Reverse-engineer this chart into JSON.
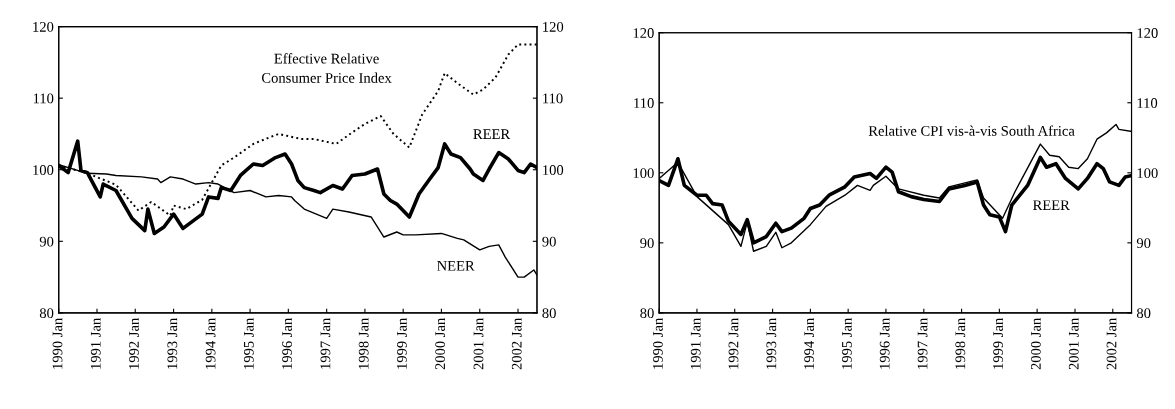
{
  "chart_data": [
    {
      "type": "line",
      "xlim": [
        "1990-01",
        "2002-07"
      ],
      "ylim": [
        80,
        120
      ],
      "yticks": [
        80,
        90,
        100,
        110,
        120
      ],
      "y2lim": [
        80,
        120
      ],
      "y2ticks": [
        80,
        90,
        100,
        110,
        120
      ],
      "grid": false,
      "legend": false,
      "xticks": [
        {
          "value": "1990-01",
          "label": "1990 Jan"
        },
        {
          "value": "1991-01",
          "label": "1991 Jan"
        },
        {
          "value": "1992-01",
          "label": "1992 Jan"
        },
        {
          "value": "1993-01",
          "label": "1993 Jan"
        },
        {
          "value": "1994-01",
          "label": "1994 Jan"
        },
        {
          "value": "1995-01",
          "label": "1995 Jan"
        },
        {
          "value": "1996-01",
          "label": "1996 Jan"
        },
        {
          "value": "1997-01",
          "label": "1997 Jan"
        },
        {
          "value": "1998-01",
          "label": "1998 Jan"
        },
        {
          "value": "1999-01",
          "label": "1999 Jan"
        },
        {
          "value": "2000-01",
          "label": "2000 Jan"
        },
        {
          "value": "2001-01",
          "label": "2001 Jan"
        },
        {
          "value": "2002-01",
          "label": "2002 Jan"
        }
      ],
      "series": [
        {
          "name": "REER",
          "color": "#000000",
          "line_style": "solid",
          "x": [
            "1990-01",
            "1990-04",
            "1990-07",
            "1990-08",
            "1990-10",
            "1991-02",
            "1991-03",
            "1991-07",
            "1991-12",
            "1992-04",
            "1992-05",
            "1992-07",
            "1992-10",
            "1993-01",
            "1993-04",
            "1993-10",
            "1993-12",
            "1994-03",
            "1994-04",
            "1994-07",
            "1994-10",
            "1995-02",
            "1995-05",
            "1995-09",
            "1995-12",
            "1996-02",
            "1996-04",
            "1996-06",
            "1996-09",
            "1996-11",
            "1997-03",
            "1997-06",
            "1997-09",
            "1998-01",
            "1998-05",
            "1998-07",
            "1998-09",
            "1998-11",
            "1999-03",
            "1999-06",
            "1999-09",
            "1999-12",
            "2000-02",
            "2000-04",
            "2000-07",
            "2000-10",
            "2000-11",
            "2001-02",
            "2001-04",
            "2001-07",
            "2001-10",
            "2002-01",
            "2002-03",
            "2002-05",
            "2002-07"
          ],
          "values": [
            100.6,
            99.6,
            104.0,
            99.9,
            99.6,
            96.2,
            98.0,
            97.1,
            93.2,
            91.5,
            94.5,
            91.1,
            92.0,
            93.8,
            91.8,
            93.8,
            96.2,
            96.0,
            97.5,
            97.1,
            99.2,
            100.8,
            100.6,
            101.7,
            102.2,
            100.8,
            98.5,
            97.5,
            97.1,
            96.8,
            97.8,
            97.3,
            99.2,
            99.4,
            100.1,
            96.6,
            95.7,
            95.2,
            93.4,
            96.6,
            98.5,
            100.3,
            103.6,
            102.2,
            101.7,
            100.1,
            99.4,
            98.5,
            100.1,
            102.4,
            101.5,
            99.9,
            99.6,
            100.8,
            100.3
          ]
        },
        {
          "name": "NEER",
          "color": "#000000",
          "line_style": "solid",
          "x": [
            "1990-01",
            "1990-10",
            "1991-04",
            "1991-07",
            "1992-03",
            "1992-08",
            "1992-09",
            "1992-12",
            "1993-04",
            "1993-08",
            "1993-12",
            "1994-03",
            "1994-08",
            "1995-01",
            "1995-06",
            "1995-10",
            "1996-02",
            "1996-03",
            "1996-06",
            "1997-01",
            "1997-03",
            "1997-08",
            "1998-03",
            "1998-07",
            "1998-11",
            "1999-01",
            "1999-05",
            "2000-01",
            "2000-06",
            "2000-08",
            "2001-01",
            "2001-04",
            "2001-07",
            "2001-09",
            "2002-01",
            "2002-03",
            "2002-06",
            "2002-07"
          ],
          "values": [
            100.7,
            99.5,
            99.4,
            99.2,
            99.0,
            98.7,
            98.2,
            99.0,
            98.7,
            98.0,
            98.2,
            98.0,
            96.8,
            97.1,
            96.2,
            96.4,
            96.2,
            95.7,
            94.5,
            93.2,
            94.5,
            94.1,
            93.4,
            90.6,
            91.3,
            90.9,
            90.9,
            91.1,
            90.4,
            90.2,
            88.8,
            89.3,
            89.5,
            87.8,
            85.0,
            85.0,
            86.0,
            85.3
          ]
        },
        {
          "name": "Effective Relative\nConsumer Price Index",
          "color": "#000000",
          "line_style": "dotted",
          "x": [
            "1990-01",
            "1990-10",
            "1991-07",
            "1992-02",
            "1992-06",
            "1992-12",
            "1993-01",
            "1993-05",
            "1993-10",
            "1994-04",
            "1994-08",
            "1995-02",
            "1995-07",
            "1995-10",
            "1996-05",
            "1996-09",
            "1997-04",
            "1997-09",
            "1998-01",
            "1998-06",
            "1998-10",
            "1999-03",
            "1999-07",
            "1999-12",
            "2000-02",
            "2000-06",
            "2000-11",
            "2001-02",
            "2001-06",
            "2001-10",
            "2002-01",
            "2002-07"
          ],
          "values": [
            100.6,
            99.5,
            97.9,
            94.3,
            95.5,
            93.6,
            95.0,
            94.5,
            95.8,
            100.6,
            101.7,
            103.6,
            104.5,
            105.0,
            104.3,
            104.3,
            103.6,
            105.2,
            106.4,
            107.5,
            105.0,
            103.1,
            107.7,
            111.0,
            113.5,
            112.1,
            110.5,
            111.2,
            112.9,
            116.1,
            117.5,
            117.5
          ]
        }
      ]
    },
    {
      "type": "line",
      "xlim": [
        "1990-01",
        "2002-07"
      ],
      "ylim": [
        80,
        120
      ],
      "yticks": [
        80,
        90,
        100,
        110,
        120
      ],
      "y2lim": [
        80,
        120
      ],
      "y2ticks": [
        80,
        90,
        100,
        110,
        120
      ],
      "grid": false,
      "legend": false,
      "xticks": [
        {
          "value": "1990-01",
          "label": "1990 Jan"
        },
        {
          "value": "1991-01",
          "label": "1991 Jan"
        },
        {
          "value": "1992-01",
          "label": "1992 Jan"
        },
        {
          "value": "1993-01",
          "label": "1993 Jan"
        },
        {
          "value": "1994-01",
          "label": "1994 Jan"
        },
        {
          "value": "1995-01",
          "label": "1995 Jan"
        },
        {
          "value": "1996-01",
          "label": "1996 Jan"
        },
        {
          "value": "1997-01",
          "label": "1997 Jan"
        },
        {
          "value": "1998-01",
          "label": "1998 Jan"
        },
        {
          "value": "1999-01",
          "label": "1999 Jan"
        },
        {
          "value": "2000-01",
          "label": "2000 Jan"
        },
        {
          "value": "2001-01",
          "label": "2001 Jan"
        },
        {
          "value": "2002-01",
          "label": "2002 Jan"
        }
      ],
      "series": [
        {
          "name": "REER",
          "color": "#000000",
          "line_style": "solid",
          "x": [
            "1990-01",
            "1990-04",
            "1990-07",
            "1990-09",
            "1991-01",
            "1991-04",
            "1991-06",
            "1991-09",
            "1991-11",
            "1992-03",
            "1992-05",
            "1992-07",
            "1992-11",
            "1993-02",
            "1993-04",
            "1993-07",
            "1993-11",
            "1994-01",
            "1994-04",
            "1994-07",
            "1994-12",
            "1995-03",
            "1995-08",
            "1995-10",
            "1996-01",
            "1996-03",
            "1996-05",
            "1996-09",
            "1997-01",
            "1997-06",
            "1997-09",
            "1998-02",
            "1998-06",
            "1998-08",
            "1998-10",
            "1999-01",
            "1999-03",
            "1999-05",
            "1999-10",
            "2000-02",
            "2000-04",
            "2000-07",
            "2000-10",
            "2001-02",
            "2001-05",
            "2001-08",
            "2001-10",
            "2001-12",
            "2002-03",
            "2002-05",
            "2002-07"
          ],
          "values": [
            98.9,
            98.2,
            102.0,
            98.2,
            96.8,
            96.8,
            95.6,
            95.4,
            93.1,
            91.2,
            93.3,
            90.0,
            90.9,
            92.8,
            91.6,
            92.1,
            93.5,
            94.9,
            95.4,
            96.8,
            98.0,
            99.4,
            99.9,
            99.2,
            100.8,
            100.1,
            97.3,
            96.6,
            96.2,
            95.9,
            97.7,
            98.2,
            98.7,
            95.4,
            94.0,
            93.7,
            91.6,
            95.4,
            98.2,
            102.2,
            100.8,
            101.3,
            99.2,
            97.7,
            99.2,
            101.3,
            100.6,
            98.7,
            98.2,
            99.4,
            99.6
          ]
        },
        {
          "name": "Relative CPI vis-à-vis South Africa",
          "color": "#000000",
          "line_style": "solid",
          "x": [
            "1990-01",
            "1990-07",
            "1991-01",
            "1991-11",
            "1992-03",
            "1992-05",
            "1992-07",
            "1992-11",
            "1993-02",
            "1993-04",
            "1993-07",
            "1994-01",
            "1994-06",
            "1994-12",
            "1995-04",
            "1995-08",
            "1995-09",
            "1996-01",
            "1996-05",
            "1997-01",
            "1997-06",
            "1997-09",
            "1998-06",
            "1998-08",
            "1999-02",
            "1999-06",
            "2000-02",
            "2000-05",
            "2000-08",
            "2000-11",
            "2001-02",
            "2001-05",
            "2001-08",
            "2001-11",
            "2002-02",
            "2002-03",
            "2002-07"
          ],
          "values": [
            99.2,
            101.5,
            96.6,
            92.6,
            89.5,
            93.0,
            88.8,
            89.5,
            91.5,
            89.3,
            90.0,
            92.6,
            95.2,
            96.8,
            98.2,
            97.5,
            98.2,
            99.5,
            97.7,
            96.8,
            96.4,
            98.0,
            99.0,
            96.4,
            93.5,
            97.3,
            104.1,
            102.5,
            102.3,
            100.8,
            100.6,
            102.0,
            104.8,
            105.7,
            106.9,
            106.2,
            105.9
          ]
        }
      ]
    }
  ]
}
